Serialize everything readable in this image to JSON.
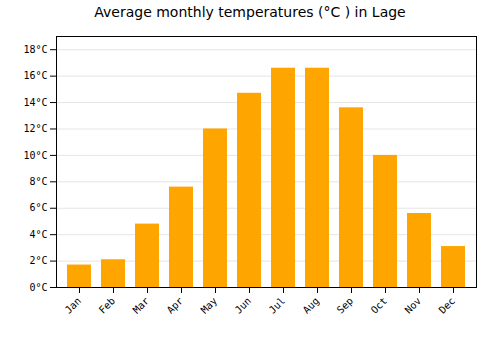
{
  "chart_data": {
    "type": "bar",
    "title": "Average monthly temperatures (°C ) in Lage",
    "categories": [
      "Jan",
      "Feb",
      "Mar",
      "Apr",
      "May",
      "Jun",
      "Jul",
      "Aug",
      "Sep",
      "Oct",
      "Nov",
      "Dec"
    ],
    "values": [
      1.7,
      2.1,
      4.8,
      7.6,
      12.0,
      14.7,
      16.6,
      16.6,
      13.6,
      10.0,
      5.6,
      3.1
    ],
    "color": "#FFA500",
    "ylim": [
      0,
      19
    ],
    "yticks": [
      {
        "value": 0,
        "label": "0°C"
      },
      {
        "value": 2,
        "label": "2°C"
      },
      {
        "value": 4,
        "label": "4°C"
      },
      {
        "value": 6,
        "label": "6°C"
      },
      {
        "value": 8,
        "label": "8°C"
      },
      {
        "value": 10,
        "label": "10°C"
      },
      {
        "value": 12,
        "label": "12°C"
      },
      {
        "value": 14,
        "label": "14°C"
      },
      {
        "value": 16,
        "label": "16°C"
      },
      {
        "value": 18,
        "label": "18°C"
      }
    ],
    "grid": true
  }
}
